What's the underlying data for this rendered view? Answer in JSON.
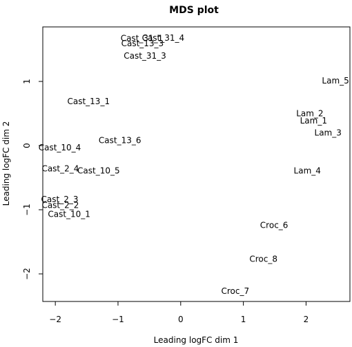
{
  "chart_data": {
    "type": "scatter",
    "title": "MDS plot",
    "xlabel": "Leading logFC dim 1",
    "ylabel": "Leading logFC dim 2",
    "xlim": [
      -2.2,
      2.7
    ],
    "ylim": [
      -2.43,
      1.85
    ],
    "x_ticks": [
      -2,
      -1,
      0,
      1,
      2
    ],
    "y_ticks": [
      -2,
      -1,
      0,
      1
    ],
    "grid": false,
    "marker": "text-labels",
    "points": [
      {
        "label": "Cast_31_4",
        "x": -0.28,
        "y": 1.68
      },
      {
        "label": "Cast_31_1",
        "x": -0.62,
        "y": 1.67
      },
      {
        "label": "Cast_13_3",
        "x": -0.61,
        "y": 1.59
      },
      {
        "label": "Cast_31_3",
        "x": -0.57,
        "y": 1.4
      },
      {
        "label": "Cast_13_1",
        "x": -1.47,
        "y": 0.69
      },
      {
        "label": "Cast_13_6",
        "x": -0.97,
        "y": 0.08
      },
      {
        "label": "Cast_10_4",
        "x": -1.93,
        "y": -0.03
      },
      {
        "label": "Cast_2_4",
        "x": -1.92,
        "y": -0.36
      },
      {
        "label": "Cast_10_5",
        "x": -1.31,
        "y": -0.39
      },
      {
        "label": "Cast_2_3",
        "x": -1.93,
        "y": -0.84
      },
      {
        "label": "Cast_2_2",
        "x": -1.92,
        "y": -0.93
      },
      {
        "label": "Cast_10_1",
        "x": -1.78,
        "y": -1.07
      },
      {
        "label": "Lam_5",
        "x": 2.47,
        "y": 1.01
      },
      {
        "label": "Lam_2",
        "x": 2.06,
        "y": 0.5
      },
      {
        "label": "Lam_1",
        "x": 2.12,
        "y": 0.39
      },
      {
        "label": "Lam_3",
        "x": 2.35,
        "y": 0.2
      },
      {
        "label": "Lam_4",
        "x": 2.02,
        "y": -0.39
      },
      {
        "label": "Croc_6",
        "x": 1.49,
        "y": -1.24
      },
      {
        "label": "Croc_8",
        "x": 1.32,
        "y": -1.77
      },
      {
        "label": "Croc_7",
        "x": 0.87,
        "y": -2.27
      }
    ]
  }
}
